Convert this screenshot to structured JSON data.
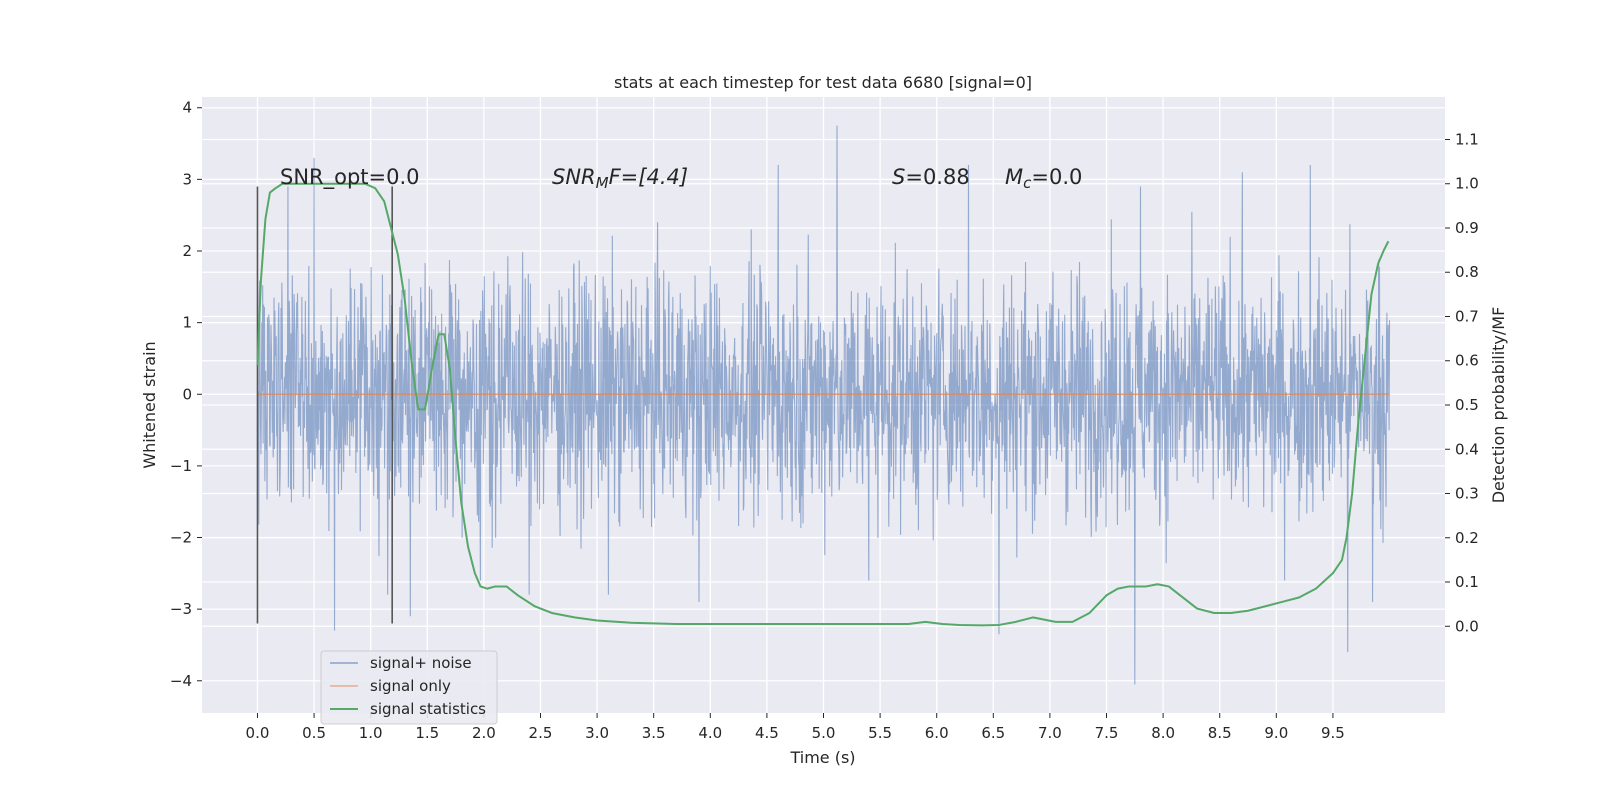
{
  "chart_data": {
    "type": "line",
    "title": "stats at each timestep for test data 6680 [signal=0]",
    "xlabel": "Time (s)",
    "ylabel": "Whitened strain",
    "y2label": "Detection probability/MF",
    "xlim": [
      -0.49,
      10.49
    ],
    "ylim": [
      -4.45,
      4.15
    ],
    "y2lim": [
      -0.196,
      1.196
    ],
    "x_ticks": [
      0.0,
      0.5,
      1.0,
      1.5,
      2.0,
      2.5,
      3.0,
      3.5,
      4.0,
      4.5,
      5.0,
      5.5,
      6.0,
      6.5,
      7.0,
      7.5,
      8.0,
      8.5,
      9.0,
      9.5
    ],
    "x_tick_labels": [
      "0.0",
      "0.5",
      "1.0",
      "1.5",
      "2.0",
      "2.5",
      "3.0",
      "3.5",
      "4.0",
      "4.5",
      "5.0",
      "5.5",
      "6.0",
      "6.5",
      "7.0",
      "7.5",
      "8.0",
      "8.5",
      "9.0",
      "9.5"
    ],
    "y_ticks": [
      -4,
      -3,
      -2,
      -1,
      0,
      1,
      2,
      3,
      4
    ],
    "y_tick_labels": [
      "−4",
      "−3",
      "−2",
      "−1",
      "0",
      "1",
      "2",
      "3",
      "4"
    ],
    "y2_ticks": [
      0.0,
      0.1,
      0.2,
      0.3,
      0.4,
      0.5,
      0.6,
      0.7,
      0.8,
      0.9,
      1.0,
      1.1
    ],
    "y2_tick_labels": [
      "0.0",
      "0.1",
      "0.2",
      "0.3",
      "0.4",
      "0.5",
      "0.6",
      "0.7",
      "0.8",
      "0.9",
      "1.0",
      "1.1"
    ],
    "grid": true,
    "legend_position": "lower-left",
    "annotations": [
      {
        "x": 0.2,
        "y": 3.0,
        "text": "SNR_opt=0.0"
      },
      {
        "x": 2.6,
        "y": 3.0,
        "text_main": "SNR",
        "text_sub": "M",
        "text_rest": "F=[4.4]"
      },
      {
        "x": 5.6,
        "y": 3.0,
        "text_main": "S",
        "text_rest": "=0.88"
      },
      {
        "x": 6.6,
        "y": 3.0,
        "text_main": "M",
        "text_sub": "c",
        "text_rest": "=0.0"
      }
    ],
    "vertical_lines": [
      {
        "x": 0.0,
        "ymin": -3.2,
        "ymax": 2.9
      },
      {
        "x": 1.19,
        "ymin": -3.2,
        "ymax": 2.9
      }
    ],
    "series": [
      {
        "name": "signal+ noise",
        "color": "#4c72b0",
        "x_range": [
          0.0,
          10.0
        ],
        "typical_band": [
          -1.4,
          1.6
        ],
        "extremes": [
          {
            "x": 0.27,
            "y": 2.9
          },
          {
            "x": 0.5,
            "y": 3.3
          },
          {
            "x": 0.68,
            "y": -3.3
          },
          {
            "x": 1.15,
            "y": -2.8
          },
          {
            "x": 1.35,
            "y": -3.1
          },
          {
            "x": 1.97,
            "y": -2.6
          },
          {
            "x": 2.4,
            "y": -2.8
          },
          {
            "x": 3.1,
            "y": -2.8
          },
          {
            "x": 3.9,
            "y": -2.9
          },
          {
            "x": 4.6,
            "y": 3.2
          },
          {
            "x": 5.12,
            "y": 3.75
          },
          {
            "x": 5.4,
            "y": -2.6
          },
          {
            "x": 6.28,
            "y": 3.2
          },
          {
            "x": 6.55,
            "y": -3.35
          },
          {
            "x": 7.75,
            "y": -4.05
          },
          {
            "x": 7.8,
            "y": 2.9
          },
          {
            "x": 8.7,
            "y": 3.1
          },
          {
            "x": 9.3,
            "y": 3.2
          },
          {
            "x": 9.63,
            "y": -3.6
          },
          {
            "x": 9.85,
            "y": -2.9
          }
        ]
      },
      {
        "name": "signal only",
        "color": "#dd8452",
        "x": [
          0.0,
          10.0
        ],
        "y": [
          0.0,
          0.0
        ]
      },
      {
        "name": "signal statistics",
        "color": "#55a868",
        "axis": "right",
        "x": [
          0.0,
          0.03,
          0.07,
          0.11,
          0.16,
          0.22,
          0.3,
          0.45,
          0.6,
          0.8,
          0.95,
          1.04,
          1.12,
          1.18,
          1.24,
          1.3,
          1.36,
          1.42,
          1.48,
          1.54,
          1.6,
          1.65,
          1.7,
          1.75,
          1.8,
          1.86,
          1.92,
          1.97,
          2.03,
          2.1,
          2.2,
          2.3,
          2.45,
          2.6,
          2.8,
          3.0,
          3.3,
          3.7,
          4.1,
          4.5,
          4.9,
          5.3,
          5.6,
          5.75,
          5.9,
          6.05,
          6.2,
          6.4,
          6.55,
          6.7,
          6.85,
          6.95,
          7.05,
          7.2,
          7.35,
          7.5,
          7.6,
          7.7,
          7.85,
          7.95,
          8.05,
          8.15,
          8.3,
          8.45,
          8.6,
          8.75,
          8.9,
          9.05,
          9.2,
          9.35,
          9.5,
          9.58,
          9.62,
          9.67,
          9.72,
          9.78,
          9.84,
          9.9,
          9.95,
          9.99
        ],
        "y": [
          0.59,
          0.78,
          0.92,
          0.98,
          0.99,
          1.0,
          1.0,
          1.0,
          1.0,
          1.0,
          1.0,
          0.99,
          0.96,
          0.9,
          0.84,
          0.74,
          0.6,
          0.49,
          0.49,
          0.58,
          0.66,
          0.66,
          0.58,
          0.42,
          0.28,
          0.18,
          0.12,
          0.09,
          0.085,
          0.09,
          0.09,
          0.07,
          0.045,
          0.03,
          0.02,
          0.013,
          0.008,
          0.005,
          0.005,
          0.005,
          0.005,
          0.005,
          0.005,
          0.005,
          0.01,
          0.005,
          0.003,
          0.002,
          0.003,
          0.01,
          0.02,
          0.015,
          0.01,
          0.01,
          0.03,
          0.07,
          0.085,
          0.09,
          0.09,
          0.095,
          0.09,
          0.07,
          0.04,
          0.03,
          0.03,
          0.035,
          0.045,
          0.055,
          0.065,
          0.085,
          0.12,
          0.15,
          0.2,
          0.3,
          0.45,
          0.6,
          0.75,
          0.82,
          0.85,
          0.87
        ]
      }
    ]
  }
}
